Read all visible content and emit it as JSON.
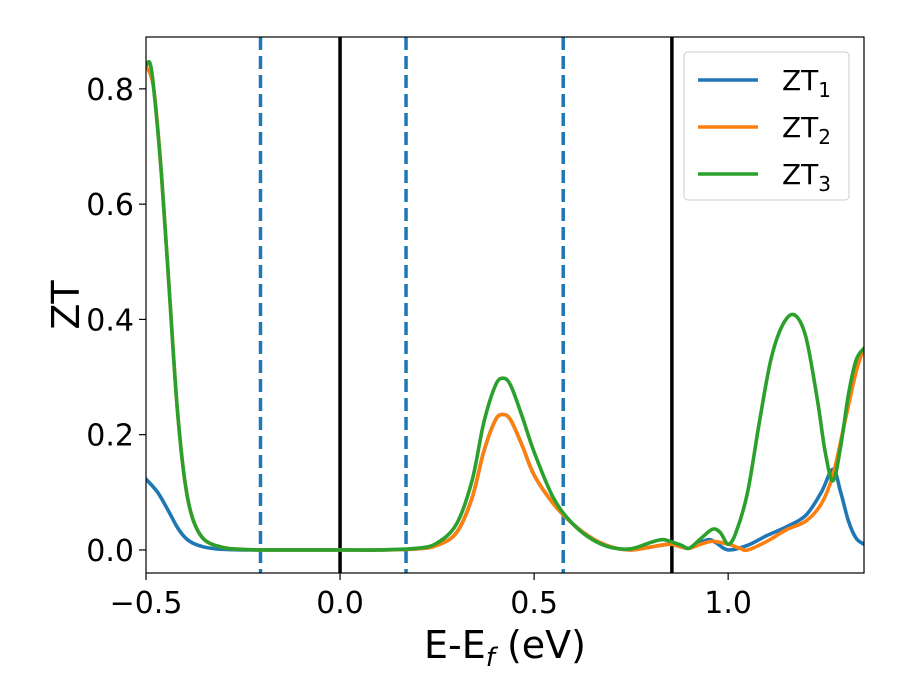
{
  "chart_data": {
    "type": "line",
    "title": "",
    "xlabel": "E-E",
    "xlabel_sub": "f",
    "xlabel_unit": " (eV)",
    "ylabel": "ZT",
    "xlim": [
      -0.5,
      1.35
    ],
    "ylim": [
      -0.04,
      0.89
    ],
    "x_ticks": [
      -0.5,
      0.0,
      0.5,
      1.0
    ],
    "x_tick_labels": [
      "−0.5",
      "0.0",
      "0.5",
      "1.0"
    ],
    "y_ticks": [
      0.0,
      0.2,
      0.4,
      0.6,
      0.8
    ],
    "y_tick_labels": [
      "0.0",
      "0.2",
      "0.4",
      "0.6",
      "0.8"
    ],
    "grid": false,
    "legend_position": "top-right",
    "vlines_solid": [
      0.0,
      0.855
    ],
    "vlines_dashed": [
      -0.205,
      0.17,
      0.575
    ],
    "vline_colors": {
      "solid": "#000000",
      "dashed": "#1f77b4"
    },
    "series": [
      {
        "name": "ZT",
        "name_sub": "1",
        "color": "#1f77b4",
        "x": [
          -0.5,
          -0.47,
          -0.44,
          -0.42,
          -0.4,
          -0.38,
          -0.35,
          -0.32,
          -0.3,
          -0.25,
          -0.2,
          -0.1,
          0.0,
          0.1,
          0.2,
          0.25,
          0.3,
          0.34,
          0.37,
          0.4,
          0.42,
          0.44,
          0.47,
          0.5,
          0.55,
          0.6,
          0.65,
          0.7,
          0.75,
          0.8,
          0.85,
          0.88,
          0.9,
          0.92,
          0.95,
          0.97,
          1.0,
          1.05,
          1.1,
          1.15,
          1.2,
          1.24,
          1.27,
          1.29,
          1.31,
          1.33,
          1.35
        ],
        "y": [
          0.123,
          0.1,
          0.065,
          0.04,
          0.022,
          0.012,
          0.005,
          0.002,
          0.001,
          0.0,
          0.0,
          0.0,
          0.0,
          0.0,
          0.002,
          0.008,
          0.03,
          0.09,
          0.17,
          0.225,
          0.235,
          0.225,
          0.18,
          0.13,
          0.08,
          0.045,
          0.02,
          0.005,
          0.0,
          0.005,
          0.01,
          0.005,
          0.003,
          0.01,
          0.018,
          0.012,
          0.0,
          0.008,
          0.025,
          0.04,
          0.06,
          0.1,
          0.14,
          0.1,
          0.05,
          0.02,
          0.01
        ]
      },
      {
        "name": "ZT",
        "name_sub": "2",
        "color": "#ff7f0e",
        "x": [
          -0.5,
          -0.48,
          -0.46,
          -0.44,
          -0.42,
          -0.4,
          -0.38,
          -0.35,
          -0.3,
          -0.25,
          -0.2,
          -0.1,
          0.0,
          0.1,
          0.2,
          0.25,
          0.3,
          0.34,
          0.37,
          0.4,
          0.42,
          0.44,
          0.47,
          0.5,
          0.55,
          0.6,
          0.65,
          0.7,
          0.75,
          0.8,
          0.85,
          0.88,
          0.9,
          0.93,
          0.96,
          1.0,
          1.03,
          1.05,
          1.1,
          1.15,
          1.2,
          1.24,
          1.27,
          1.3,
          1.33,
          1.35
        ],
        "y": [
          0.84,
          0.8,
          0.65,
          0.45,
          0.25,
          0.12,
          0.055,
          0.018,
          0.004,
          0.001,
          0.0,
          0.0,
          0.0,
          0.0,
          0.002,
          0.008,
          0.03,
          0.09,
          0.17,
          0.225,
          0.235,
          0.225,
          0.18,
          0.13,
          0.08,
          0.045,
          0.02,
          0.005,
          0.0,
          0.005,
          0.01,
          0.005,
          0.003,
          0.01,
          0.015,
          0.01,
          0.003,
          0.0,
          0.015,
          0.035,
          0.05,
          0.08,
          0.13,
          0.22,
          0.31,
          0.35
        ]
      },
      {
        "name": "ZT",
        "name_sub": "3",
        "color": "#2ca02c",
        "x": [
          -0.5,
          -0.49,
          -0.48,
          -0.46,
          -0.44,
          -0.42,
          -0.4,
          -0.38,
          -0.35,
          -0.3,
          -0.25,
          -0.2,
          -0.1,
          0.0,
          0.1,
          0.2,
          0.25,
          0.3,
          0.34,
          0.37,
          0.4,
          0.42,
          0.44,
          0.47,
          0.5,
          0.55,
          0.6,
          0.65,
          0.7,
          0.75,
          0.8,
          0.83,
          0.85,
          0.88,
          0.9,
          0.93,
          0.96,
          0.98,
          1.0,
          1.02,
          1.05,
          1.08,
          1.11,
          1.14,
          1.17,
          1.2,
          1.23,
          1.25,
          1.27,
          1.29,
          1.31,
          1.33,
          1.35
        ],
        "y": [
          0.84,
          0.845,
          0.8,
          0.65,
          0.45,
          0.25,
          0.12,
          0.055,
          0.018,
          0.004,
          0.001,
          0.0,
          0.0,
          0.0,
          0.0,
          0.003,
          0.012,
          0.045,
          0.12,
          0.22,
          0.285,
          0.298,
          0.285,
          0.23,
          0.17,
          0.09,
          0.045,
          0.018,
          0.004,
          0.002,
          0.013,
          0.018,
          0.015,
          0.008,
          0.003,
          0.02,
          0.036,
          0.03,
          0.01,
          0.03,
          0.1,
          0.22,
          0.33,
          0.39,
          0.408,
          0.37,
          0.26,
          0.17,
          0.12,
          0.18,
          0.27,
          0.33,
          0.35
        ]
      }
    ]
  }
}
